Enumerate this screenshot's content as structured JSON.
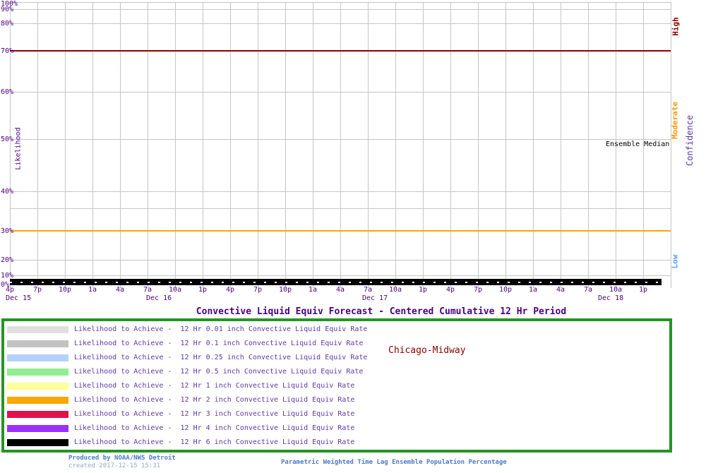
{
  "chart_data": {
    "type": "line",
    "title": "Convective Liquid Equiv Forecast - Centered Cumulative 12 Hr Period",
    "station": "Chicago-Midway",
    "grid": true,
    "legend_position": "bottom-box",
    "y_axis": {
      "label": "Likelihood",
      "scale": "probability",
      "ticks": [
        "100%",
        "90%",
        "80%",
        "70%",
        "60%",
        "50%",
        "40%",
        "30%",
        "20%",
        "10%",
        "0%"
      ],
      "ylim_percent": [
        0,
        100
      ]
    },
    "x_axis": {
      "tick_labels": [
        "4p",
        "7p",
        "10p",
        "1a",
        "4a",
        "7a",
        "10a",
        "1p",
        "4p",
        "7p",
        "10p",
        "1a",
        "4a",
        "7a",
        "10a",
        "1p",
        "4p",
        "7p",
        "10p",
        "1a",
        "4a",
        "7a",
        "10a",
        "1p"
      ],
      "date_labels": [
        "Dec 15",
        "Dec 16",
        "Dec 17",
        "Dec 18"
      ]
    },
    "y2_axis": {
      "label": "Confidence",
      "bands": [
        {
          "label": "High",
          "color": "#8b0000",
          "threshold_line_percent": 70
        },
        {
          "label": "Moderate",
          "color": "#ff9800",
          "threshold_line_percent": 30
        },
        {
          "label": "Low",
          "color": "#5a9cf8",
          "threshold_line_percent": null
        }
      ]
    },
    "series": [
      {
        "name": "Likelihood to Achieve -  12 Hr 0.01 inch Convective Liquid Equiv Rate",
        "color": "#e0e0e0",
        "rate_inch": 0.01,
        "constant_value_percent": 0
      },
      {
        "name": "Likelihood to Achieve -  12 Hr 0.1 inch Convective Liquid Equiv Rate",
        "color": "#c2c2c2",
        "rate_inch": 0.1,
        "constant_value_percent": 0
      },
      {
        "name": "Likelihood to Achieve -  12 Hr 0.25 inch Convective Liquid Equiv Rate",
        "color": "#b4d2f8",
        "rate_inch": 0.25,
        "constant_value_percent": 0
      },
      {
        "name": "Likelihood to Achieve -  12 Hr 0.5 inch Convective Liquid Equiv Rate",
        "color": "#90ee90",
        "rate_inch": 0.5,
        "constant_value_percent": 0
      },
      {
        "name": "Likelihood to Achieve -  12 Hr 1 inch Convective Liquid Equiv Rate",
        "color": "#ffff99",
        "rate_inch": 1,
        "constant_value_percent": 0
      },
      {
        "name": "Likelihood to Achieve -  12 Hr 2 inch Convective Liquid Equiv Rate",
        "color": "#ffa500",
        "rate_inch": 2,
        "constant_value_percent": 0
      },
      {
        "name": "Likelihood to Achieve -  12 Hr 3 inch Convective Liquid Equiv Rate",
        "color": "#e0114b",
        "rate_inch": 3,
        "constant_value_percent": 0
      },
      {
        "name": "Likelihood to Achieve -  12 Hr 4 inch Convective Liquid Equiv Rate",
        "color": "#9b30ff",
        "rate_inch": 4,
        "constant_value_percent": 0
      },
      {
        "name": "Likelihood to Achieve -  12 Hr 6 inch Convective Liquid Equiv Rate",
        "color": "#000000",
        "rate_inch": 6,
        "constant_value_percent": 0
      }
    ],
    "annotations": {
      "ensemble_median_label": "Ensemble Median",
      "ensemble_median_constant_value_percent": 0
    }
  },
  "legend": {
    "border_color": "#259425"
  },
  "footer": {
    "produced_by": "Produced by NOAA/NWS Detroit",
    "created": "created 2017-12-15 15:31",
    "subtitle": "Parametric Weighted Time Lag Ensemble Population Percentage"
  }
}
